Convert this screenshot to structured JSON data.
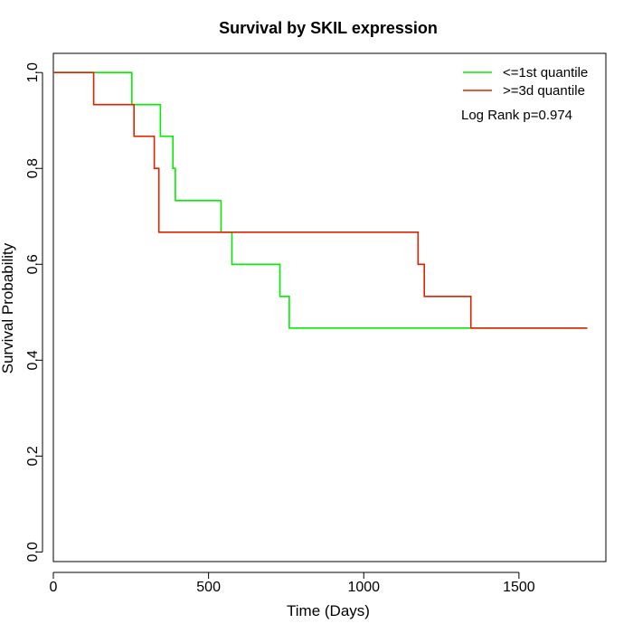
{
  "chart_data": {
    "type": "line",
    "title": "Survival by SKIL expression",
    "xlabel": "Time (Days)",
    "ylabel": "Survival Probability",
    "xlim": [
      0,
      1780
    ],
    "ylim": [
      -0.02,
      1.04
    ],
    "xticks": [
      0,
      500,
      1000,
      1500
    ],
    "yticks": [
      0.0,
      0.2,
      0.4,
      0.6,
      0.8,
      1.0
    ],
    "xtick_labels": [
      "0",
      "500",
      "1000",
      "1500"
    ],
    "ytick_labels": [
      "0.0",
      "0.2",
      "0.4",
      "0.6",
      "0.8",
      "1.0"
    ],
    "grid": false,
    "legend_position": "top-right",
    "annotation": "Log Rank p=0.974",
    "series": [
      {
        "name": "<=1st quantile",
        "color": "#00ee00",
        "step": true,
        "x": [
          0,
          253,
          253,
          345,
          345,
          385,
          385,
          393,
          393,
          540,
          540,
          575,
          575,
          730,
          730,
          760,
          760,
          1720
        ],
        "y": [
          1.0,
          1.0,
          0.933,
          0.933,
          0.867,
          0.867,
          0.8,
          0.8,
          0.733,
          0.733,
          0.667,
          0.667,
          0.6,
          0.6,
          0.533,
          0.533,
          0.467,
          0.467
        ]
      },
      {
        "name": ">=3d quantile",
        "color": "#dd2200",
        "step": true,
        "x": [
          0,
          130,
          130,
          260,
          260,
          325,
          325,
          340,
          340,
          1175,
          1175,
          1195,
          1195,
          1345,
          1345,
          1720
        ],
        "y": [
          1.0,
          1.0,
          0.933,
          0.933,
          0.867,
          0.867,
          0.8,
          0.8,
          0.667,
          0.667,
          0.6,
          0.6,
          0.533,
          0.533,
          0.467,
          0.467
        ]
      }
    ]
  }
}
